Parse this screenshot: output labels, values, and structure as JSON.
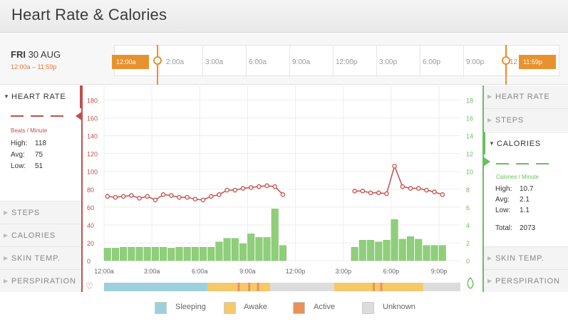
{
  "header": {
    "title": "Heart Rate & Calories"
  },
  "date": {
    "day": "FRI",
    "date": "30 AUG",
    "range": "12:00a – 11:59p"
  },
  "timeline": {
    "labels": [
      "2:00a",
      "3:00a",
      "6:00a",
      "9:00a",
      "12:00p",
      "3:00p",
      "6:00p",
      "9:00p",
      "12"
    ],
    "start_handle": "12:00a",
    "end_handle": "11:59p"
  },
  "left_sidebar": {
    "heart_rate_label": "HEART RATE",
    "unit": "Beats / Minute",
    "stats": [
      {
        "k": "High:",
        "v": "118"
      },
      {
        "k": "Avg:",
        "v": "75"
      },
      {
        "k": "Low:",
        "v": "51"
      }
    ],
    "items": [
      "STEPS",
      "CALORIES",
      "SKIN TEMP.",
      "PERSPIRATION"
    ]
  },
  "right_sidebar": {
    "items_top": [
      "HEART RATE",
      "STEPS"
    ],
    "calories_label": "CALORIES",
    "unit": "Calories / Minute",
    "stats": [
      {
        "k": "High:",
        "v": "10.7"
      },
      {
        "k": "Avg:",
        "v": "2.1"
      },
      {
        "k": "Low:",
        "v": "1.1"
      },
      {
        "k": "Total:",
        "v": "2073"
      }
    ],
    "items_bottom": [
      "SKIN TEMP.",
      "PERSPIRATION"
    ]
  },
  "legend": {
    "sleeping": "Sleeping",
    "awake": "Awake",
    "active": "Active",
    "unknown": "Unknown"
  },
  "colors": {
    "heart": "#c0504d",
    "calories": "#8fcf7a",
    "sleeping": "#9dd0dc",
    "awake": "#f5c86a",
    "active": "#e8925a",
    "unknown": "#dcdcdc",
    "accent": "#e8922f"
  },
  "chart_data": {
    "type": "bar",
    "x_tick_labels": [
      "12:00a",
      "3:00a",
      "6:00a",
      "9:00a",
      "12:00p",
      "3:00p",
      "6:00p",
      "9:00p"
    ],
    "left_axis": {
      "ticks": [
        0,
        20,
        40,
        60,
        80,
        100,
        120,
        140,
        160,
        180
      ],
      "ylim": [
        0,
        190
      ]
    },
    "right_axis": {
      "ticks": [
        0,
        2,
        4,
        6,
        8,
        10,
        12,
        14,
        16,
        18
      ],
      "ylim": [
        0,
        19
      ]
    },
    "series": [
      {
        "type": "line",
        "axis": "left",
        "x": [
          0.0,
          0.5,
          1.0,
          1.5,
          2.0,
          2.5,
          3.0,
          3.5,
          4.0,
          4.5,
          5.0,
          5.5,
          6.0,
          6.5,
          7.0,
          7.5,
          8.0,
          8.5,
          9.0,
          9.5,
          10.0,
          10.5,
          11.0,
          15.5,
          16.0,
          16.5,
          17.0,
          17.5,
          18.0,
          18.5,
          19.0,
          19.5,
          20.0,
          20.5,
          21.0
        ],
        "values": [
          72,
          71,
          72,
          73,
          70,
          72,
          68,
          74,
          73,
          71,
          71,
          69,
          68,
          72,
          74,
          79,
          79,
          81,
          82,
          83,
          84,
          83,
          74,
          78,
          78,
          76,
          76,
          75,
          106,
          83,
          81,
          81,
          79,
          77,
          74
        ]
      },
      {
        "type": "bar",
        "axis": "right",
        "x": [
          0.0,
          0.5,
          1.0,
          1.5,
          2.0,
          2.5,
          3.0,
          3.5,
          4.0,
          4.5,
          5.0,
          5.5,
          6.0,
          6.5,
          7.0,
          7.5,
          8.0,
          8.5,
          9.0,
          9.5,
          10.0,
          10.5,
          11.0,
          15.5,
          16.0,
          16.5,
          17.0,
          17.5,
          18.0,
          18.5,
          19.0,
          19.5,
          20.0,
          20.5,
          21.0
        ],
        "values": [
          1.4,
          1.4,
          1.5,
          1.5,
          1.5,
          1.5,
          1.5,
          1.5,
          1.4,
          1.5,
          1.5,
          1.5,
          1.5,
          1.5,
          2.1,
          2.5,
          2.5,
          1.9,
          3.0,
          2.6,
          2.6,
          5.8,
          1.7,
          1.5,
          2.3,
          2.3,
          2.1,
          2.3,
          4.6,
          2.4,
          2.7,
          2.4,
          1.7,
          1.7,
          1.7
        ]
      }
    ],
    "activity_bar": [
      {
        "state": "sleeping",
        "from": 0,
        "to": 7.0
      },
      {
        "state": "awake",
        "from": 7.0,
        "to": 11.2
      },
      {
        "state": "unknown",
        "from": 11.2,
        "to": 15.5
      },
      {
        "state": "awake",
        "from": 15.5,
        "to": 21.5
      },
      {
        "state": "unknown",
        "from": 21.5,
        "to": 24
      }
    ],
    "active_marks": [
      9.0,
      9.7,
      10.3,
      18.1,
      18.6
    ],
    "grid": true
  }
}
